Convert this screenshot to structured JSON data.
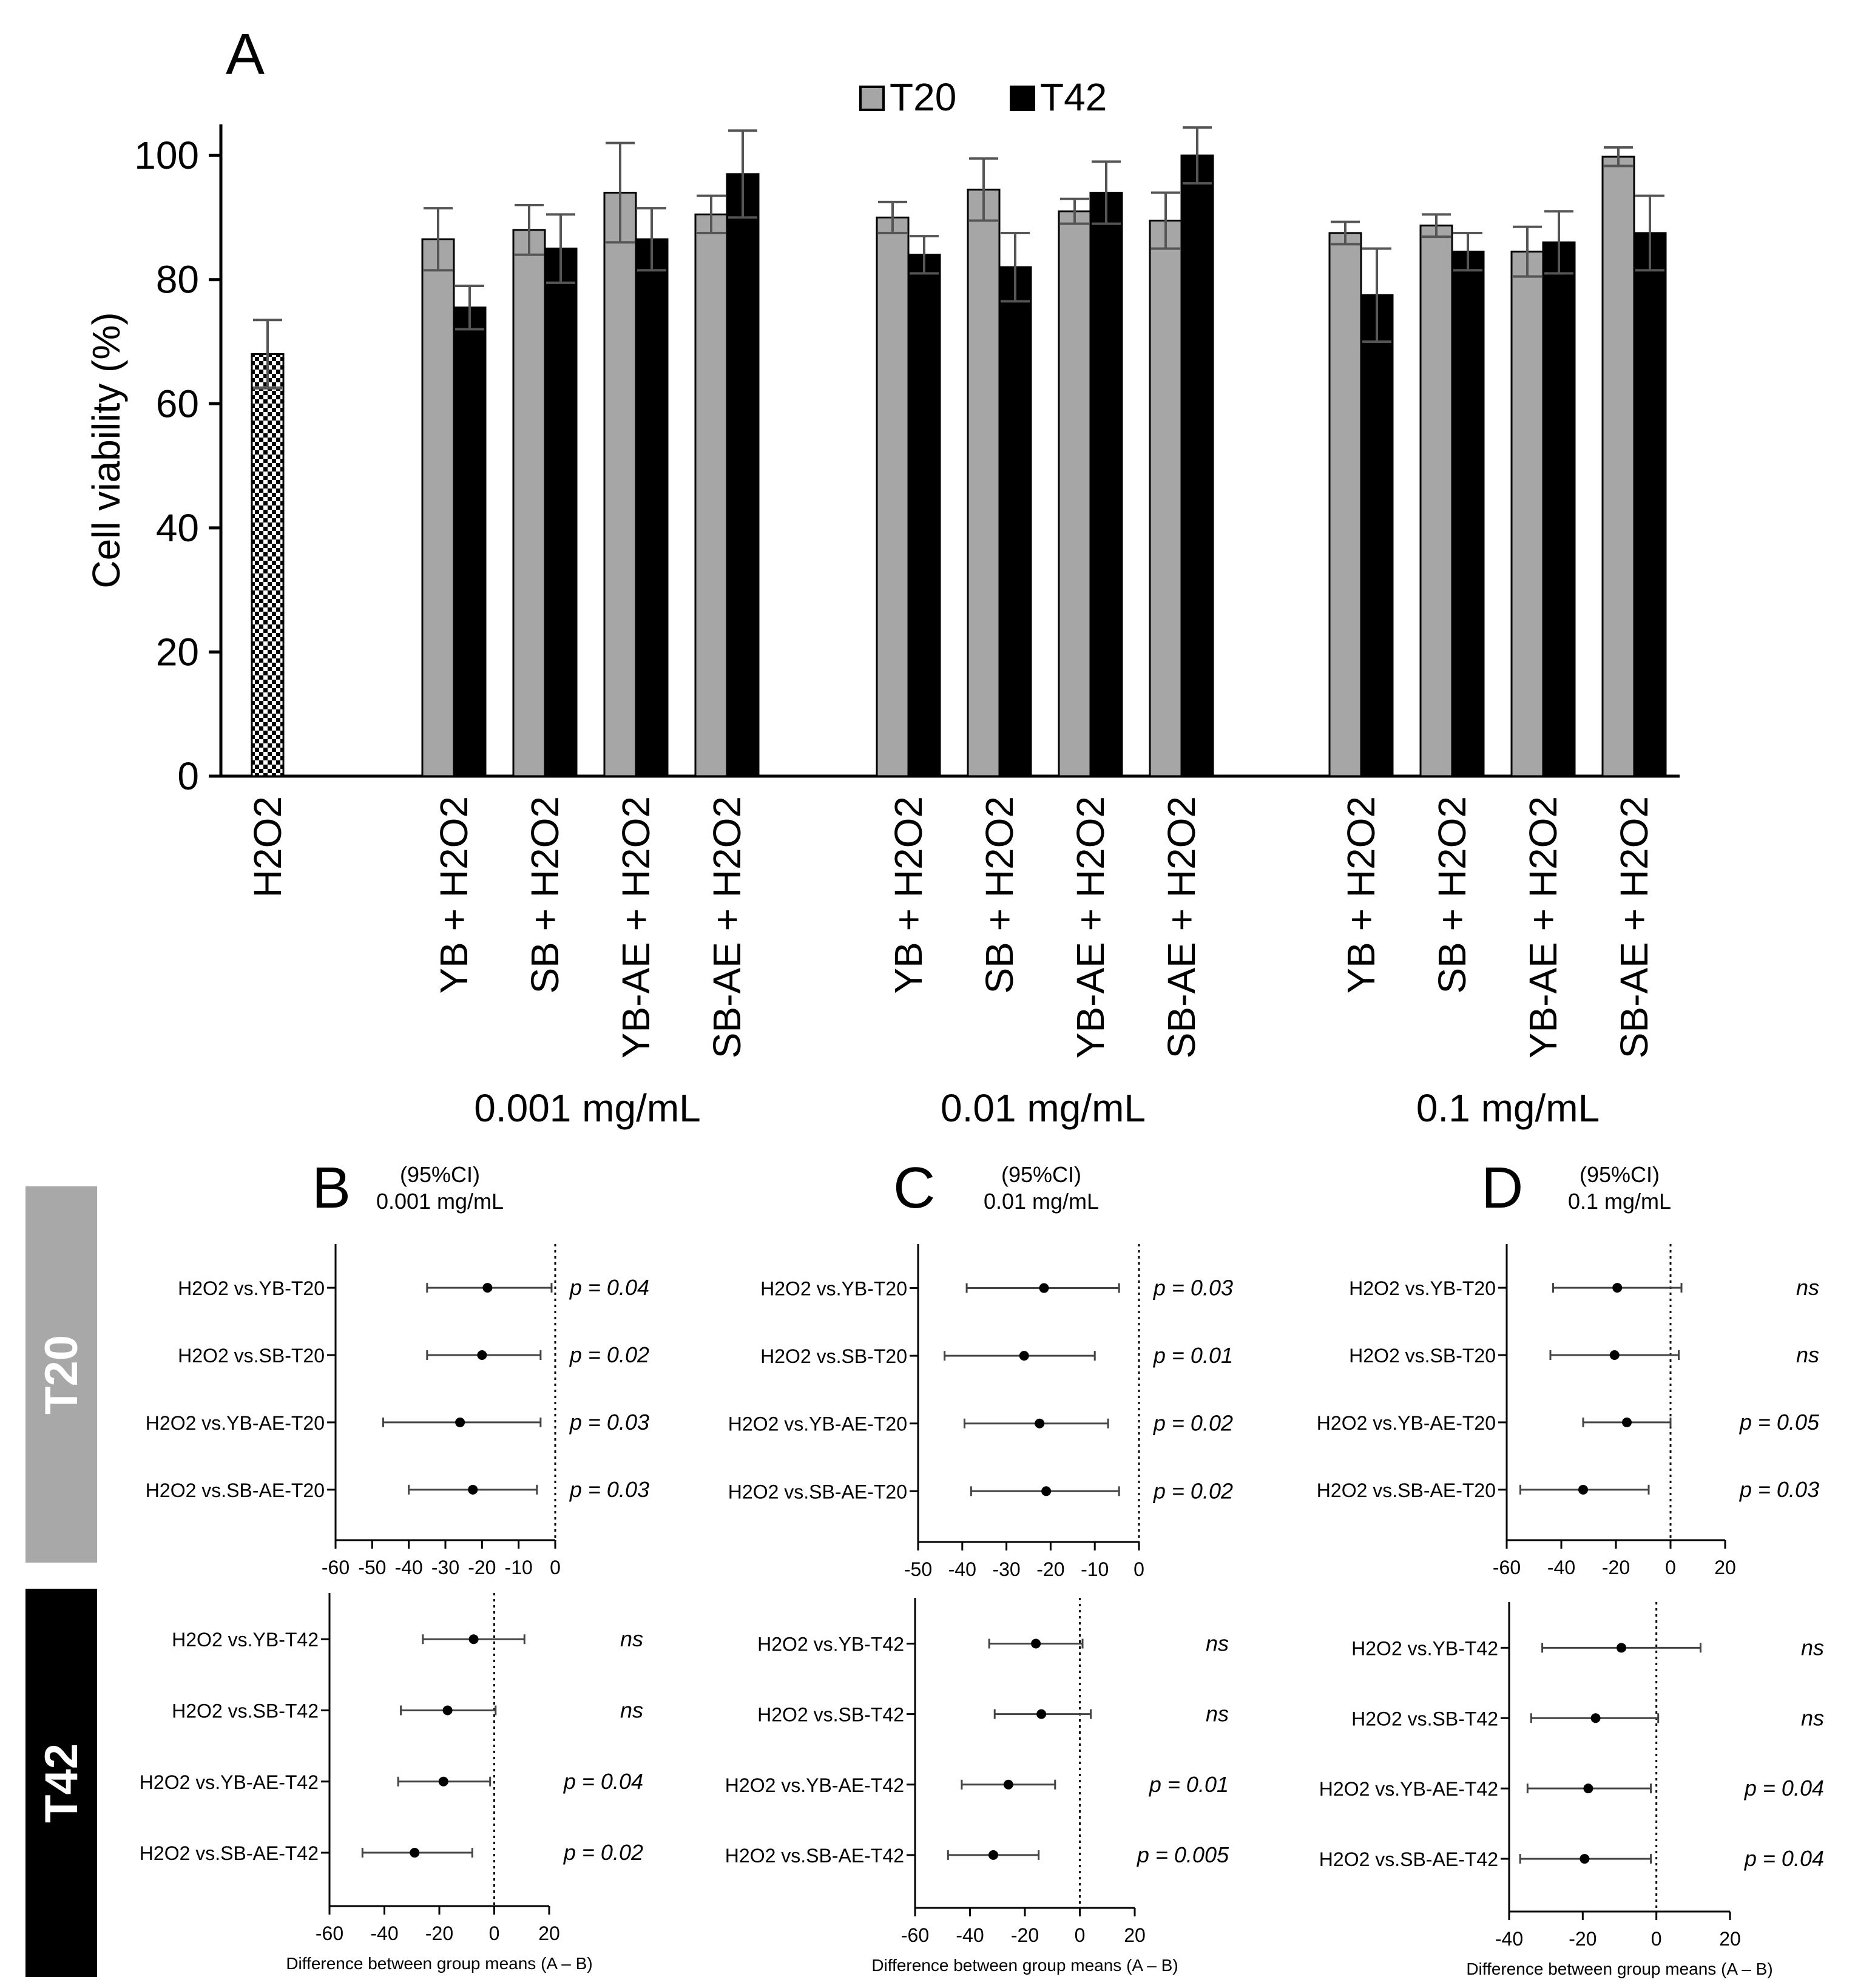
{
  "chart_data": [
    {
      "id": "A",
      "panel_letter": "A",
      "type": "bar",
      "ylabel": "Cell viability (%)",
      "ylim": [
        0,
        105
      ],
      "yticks": [
        0,
        20,
        40,
        60,
        80,
        100
      ],
      "legend": [
        {
          "name": "T20",
          "color": "#a6a6a6"
        },
        {
          "name": "T42",
          "color": "#000000"
        }
      ],
      "control": {
        "label": "H2O2",
        "value": 68,
        "err": 5.5
      },
      "groups": [
        {
          "concentration": "0.001 mg/mL",
          "categories": [
            "YB + H2O2",
            "SB + H2O2",
            "YB-AE + H2O2",
            "SB-AE + H2O2"
          ],
          "series": [
            {
              "name": "T20",
              "values": [
                86.5,
                88,
                94,
                90.5
              ],
              "err": [
                5,
                4,
                8,
                3
              ]
            },
            {
              "name": "T42",
              "values": [
                75.5,
                85,
                86.5,
                97
              ],
              "err": [
                3.5,
                5.5,
                5,
                7
              ]
            }
          ]
        },
        {
          "concentration": "0.01 mg/mL",
          "categories": [
            "YB + H2O2",
            "SB + H2O2",
            "YB-AE + H2O2",
            "SB-AE + H2O2"
          ],
          "series": [
            {
              "name": "T20",
              "values": [
                90,
                94.5,
                91,
                89.5
              ],
              "err": [
                2.5,
                5,
                2,
                4.5
              ]
            },
            {
              "name": "T42",
              "values": [
                84,
                82,
                94,
                100
              ],
              "err": [
                3,
                5.5,
                5,
                4.5
              ]
            }
          ]
        },
        {
          "concentration": "0.1 mg/mL",
          "categories": [
            "YB + H2O2",
            "SB + H2O2",
            "YB-AE + H2O2",
            "SB-AE + H2O2"
          ],
          "series": [
            {
              "name": "T20",
              "values": [
                87.5,
                88.7,
                84.5,
                99.8
              ],
              "err": [
                1.8,
                1.8,
                4,
                1.5
              ]
            },
            {
              "name": "T42",
              "values": [
                77.5,
                84.5,
                86,
                87.5
              ],
              "err": [
                7.5,
                3,
                5,
                6
              ]
            }
          ]
        }
      ]
    },
    {
      "id": "B",
      "panel_letter": "B",
      "type": "forest",
      "header": [
        "(95%CI)",
        "0.001 mg/mL"
      ],
      "T20": {
        "xlim": [
          -60,
          0
        ],
        "xticks": [
          -60,
          -50,
          -40,
          -30,
          -20,
          -10,
          0
        ],
        "rows": [
          {
            "label": "H2O2 vs.YB-T20",
            "mean": -18.5,
            "lo": -35,
            "hi": -1,
            "p": "p = 0.04"
          },
          {
            "label": "H2O2 vs.SB-T20",
            "mean": -20,
            "lo": -35,
            "hi": -4,
            "p": "p = 0.02"
          },
          {
            "label": "H2O2 vs.YB-AE-T20",
            "mean": -26,
            "lo": -47,
            "hi": -4,
            "p": "p = 0.03"
          },
          {
            "label": "H2O2 vs.SB-AE-T20",
            "mean": -22.5,
            "lo": -40,
            "hi": -5,
            "p": "p = 0.03"
          }
        ]
      },
      "T42": {
        "xlim": [
          -60,
          20
        ],
        "xticks": [
          -60,
          -40,
          -20,
          0,
          20
        ],
        "xlabel": "Difference between group means (A – B)",
        "rows": [
          {
            "label": "H2O2 vs.YB-T42",
            "mean": -7.5,
            "lo": -26,
            "hi": 11,
            "p": "ns"
          },
          {
            "label": "H2O2 vs.SB-T42",
            "mean": -17,
            "lo": -34,
            "hi": 0.5,
            "p": "ns"
          },
          {
            "label": "H2O2 vs.YB-AE-T42",
            "mean": -18.5,
            "lo": -35,
            "hi": -1.5,
            "p": "p = 0.04"
          },
          {
            "label": "H2O2 vs.SB-AE-T42",
            "mean": -29,
            "lo": -48,
            "hi": -8,
            "p": "p = 0.02"
          }
        ]
      }
    },
    {
      "id": "C",
      "panel_letter": "C",
      "type": "forest",
      "header": [
        "(95%CI)",
        "0.01 mg/mL"
      ],
      "T20": {
        "xlim": [
          -50,
          0
        ],
        "xticks": [
          -50,
          -40,
          -30,
          -20,
          -10,
          0
        ],
        "rows": [
          {
            "label": "H2O2 vs.YB-T20",
            "mean": -21.5,
            "lo": -39,
            "hi": -4.5,
            "p": "p = 0.03"
          },
          {
            "label": "H2O2 vs.SB-T20",
            "mean": -26,
            "lo": -44,
            "hi": -10,
            "p": "p = 0.01"
          },
          {
            "label": "H2O2 vs.YB-AE-T20",
            "mean": -22.5,
            "lo": -39.5,
            "hi": -7,
            "p": "p = 0.02"
          },
          {
            "label": "H2O2 vs.SB-AE-T20",
            "mean": -21,
            "lo": -38,
            "hi": -4.5,
            "p": "p = 0.02"
          }
        ]
      },
      "T42": {
        "xlim": [
          -60,
          20
        ],
        "xticks": [
          -60,
          -40,
          -20,
          0,
          20
        ],
        "xlabel": "Difference between group means (A – B)",
        "rows": [
          {
            "label": "H2O2 vs.YB-T42",
            "mean": -16,
            "lo": -33,
            "hi": 1,
            "p": "ns"
          },
          {
            "label": "H2O2 vs.SB-T42",
            "mean": -14,
            "lo": -31,
            "hi": 4,
            "p": "ns"
          },
          {
            "label": "H2O2 vs.YB-AE-T42",
            "mean": -26,
            "lo": -43,
            "hi": -9,
            "p": "p = 0.01"
          },
          {
            "label": "H2O2 vs.SB-AE-T42",
            "mean": -31.5,
            "lo": -48,
            "hi": -15,
            "p": "p = 0.005"
          }
        ]
      }
    },
    {
      "id": "D",
      "panel_letter": "D",
      "type": "forest",
      "header": [
        "(95%CI)",
        "0.1 mg/mL"
      ],
      "T20": {
        "xlim": [
          -60,
          20
        ],
        "xticks": [
          -60,
          -40,
          -20,
          0,
          20
        ],
        "rows": [
          {
            "label": "H2O2 vs.YB-T20",
            "mean": -19.5,
            "lo": -43,
            "hi": 4,
            "p": "ns"
          },
          {
            "label": "H2O2 vs.SB-T20",
            "mean": -20.5,
            "lo": -44,
            "hi": 3,
            "p": "ns"
          },
          {
            "label": "H2O2 vs.YB-AE-T20",
            "mean": -16,
            "lo": -32,
            "hi": 0,
            "p": "p = 0.05"
          },
          {
            "label": "H2O2 vs.SB-AE-T20",
            "mean": -32,
            "lo": -55,
            "hi": -8,
            "p": "p = 0.03"
          }
        ]
      },
      "T42": {
        "xlim": [
          -40,
          20
        ],
        "xticks": [
          -40,
          -20,
          0,
          20
        ],
        "xlabel": "Difference between group means (A – B)",
        "rows": [
          {
            "label": "H2O2 vs.YB-T42",
            "mean": -9.5,
            "lo": -31,
            "hi": 12,
            "p": "ns"
          },
          {
            "label": "H2O2 vs.SB-T42",
            "mean": -16.5,
            "lo": -34,
            "hi": 0.5,
            "p": "ns"
          },
          {
            "label": "H2O2 vs.YB-AE-T42",
            "mean": -18.5,
            "lo": -35,
            "hi": -1.5,
            "p": "p = 0.04"
          },
          {
            "label": "H2O2 vs.SB-AE-T42",
            "mean": -19.5,
            "lo": -37,
            "hi": -1.5,
            "p": "p = 0.04"
          }
        ]
      }
    }
  ],
  "side_labels": {
    "t20": "T20",
    "t42": "T42"
  }
}
